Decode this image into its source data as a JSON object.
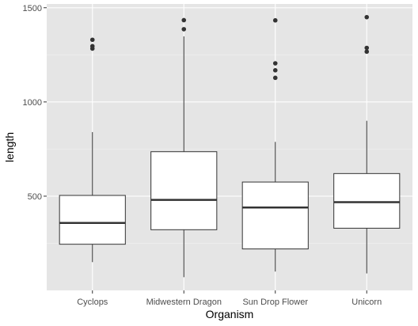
{
  "chart_data": {
    "type": "boxplot",
    "xlabel": "Organism",
    "ylabel": "length",
    "ylim": [
      0,
      1520
    ],
    "y_ticks": [
      500,
      1000,
      1500
    ],
    "y_minor_ticks": [
      250,
      750,
      1250
    ],
    "grid": true,
    "categories": [
      "Cyclops",
      "Midwestern Dragon",
      "Sun Drop Flower",
      "Unicorn"
    ],
    "boxes": [
      {
        "category": "Cyclops",
        "whisker_low": 150,
        "q1": 245,
        "median": 358,
        "q3": 504,
        "whisker_high": 840,
        "outliers": [
          1283,
          1296,
          1330
        ]
      },
      {
        "category": "Midwestern Dragon",
        "whisker_low": 70,
        "q1": 322,
        "median": 480,
        "q3": 736,
        "whisker_high": 1348,
        "outliers": [
          1386,
          1434
        ]
      },
      {
        "category": "Sun Drop Flower",
        "whisker_low": 100,
        "q1": 220,
        "median": 440,
        "q3": 575,
        "whisker_high": 788,
        "outliers": [
          1128,
          1168,
          1205,
          1433
        ]
      },
      {
        "category": "Unicorn",
        "whisker_low": 90,
        "q1": 330,
        "median": 468,
        "q3": 620,
        "whisker_high": 900,
        "outliers": [
          1267,
          1287,
          1450
        ]
      }
    ],
    "colors": {
      "panel": "#e5e5e5",
      "grid_major": "#ffffff",
      "grid_minor": "#f2f2f2",
      "box_fill": "#ffffff",
      "line": "#333333"
    }
  }
}
